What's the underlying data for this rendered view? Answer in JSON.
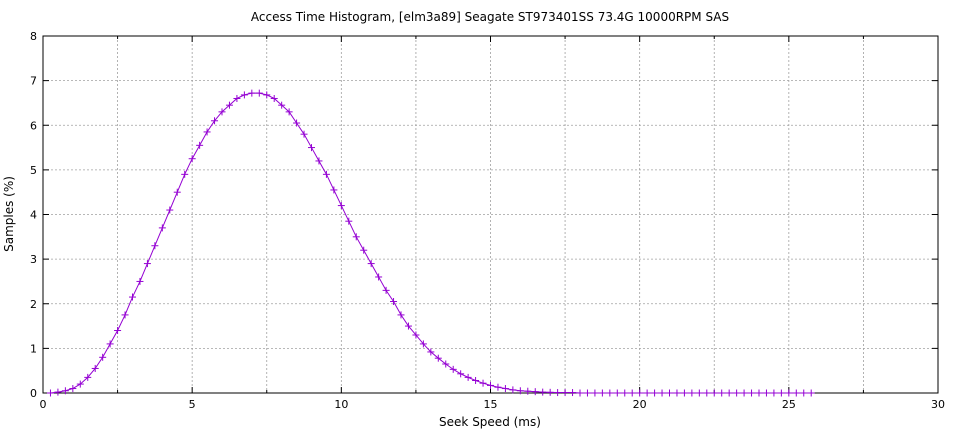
{
  "chart_data": {
    "type": "line",
    "title": "Access Time Histogram, [elm3a89] Seagate ST973401SS 73.4G 10000RPM SAS",
    "xlabel": "Seek Speed (ms)",
    "ylabel": "Samples (%)",
    "xlim": [
      0,
      30
    ],
    "ylim": [
      0,
      8
    ],
    "xticks": [
      0,
      5,
      10,
      15,
      20,
      25,
      30
    ],
    "yticks": [
      0,
      1,
      2,
      3,
      4,
      5,
      6,
      7,
      8
    ],
    "grid": true,
    "marker": "plus",
    "color": "#9400d3",
    "series": [
      {
        "x": [
          0.25,
          0.5,
          0.75,
          1.0,
          1.25,
          1.5,
          1.75,
          2.0,
          2.25,
          2.5,
          2.75,
          3.0,
          3.25,
          3.5,
          3.75,
          4.0,
          4.25,
          4.5,
          4.75,
          5.0,
          5.25,
          5.5,
          5.75,
          6.0,
          6.25,
          6.5,
          6.75,
          7.0,
          7.25,
          7.5,
          7.75,
          8.0,
          8.25,
          8.5,
          8.75,
          9.0,
          9.25,
          9.5,
          9.75,
          10.0,
          10.25,
          10.5,
          10.75,
          11.0,
          11.25,
          11.5,
          11.75,
          12.0,
          12.25,
          12.5,
          12.75,
          13.0,
          13.25,
          13.5,
          13.75,
          14.0,
          14.25,
          14.5,
          14.75,
          15.0,
          15.25,
          15.5,
          15.75,
          16.0,
          16.25,
          16.5,
          16.75,
          17.0,
          17.25,
          17.5,
          17.75,
          18.0,
          18.25,
          18.5,
          18.75,
          19.0,
          19.25,
          19.5,
          19.75,
          20.0,
          20.25,
          20.5,
          20.75,
          21.0,
          21.25,
          21.5,
          21.75,
          22.0,
          22.25,
          22.5,
          22.75,
          23.0,
          23.25,
          23.5,
          23.75,
          24.0,
          24.25,
          24.5,
          24.75,
          25.0,
          25.25,
          25.5,
          25.75
        ],
        "y": [
          0.0,
          0.02,
          0.05,
          0.1,
          0.2,
          0.35,
          0.55,
          0.8,
          1.1,
          1.4,
          1.75,
          2.15,
          2.5,
          2.9,
          3.3,
          3.7,
          4.1,
          4.5,
          4.9,
          5.25,
          5.55,
          5.85,
          6.1,
          6.3,
          6.45,
          6.6,
          6.68,
          6.72,
          6.72,
          6.68,
          6.6,
          6.45,
          6.3,
          6.05,
          5.8,
          5.5,
          5.2,
          4.9,
          4.55,
          4.2,
          3.85,
          3.5,
          3.2,
          2.9,
          2.6,
          2.3,
          2.05,
          1.75,
          1.5,
          1.3,
          1.1,
          0.92,
          0.78,
          0.65,
          0.53,
          0.43,
          0.35,
          0.28,
          0.22,
          0.17,
          0.13,
          0.1,
          0.07,
          0.05,
          0.04,
          0.03,
          0.02,
          0.015,
          0.01,
          0.01,
          0.01,
          0.0,
          0.0,
          0.0,
          0.0,
          0.0,
          0.0,
          0.0,
          0.0,
          0.0,
          0.0,
          0.0,
          0.0,
          0.0,
          0.0,
          0.0,
          0.0,
          0.0,
          0.0,
          0.0,
          0.0,
          0.0,
          0.0,
          0.0,
          0.0,
          0.0,
          0.0,
          0.0,
          0.0,
          0.0,
          0.0,
          0.0,
          0.0
        ]
      }
    ]
  }
}
